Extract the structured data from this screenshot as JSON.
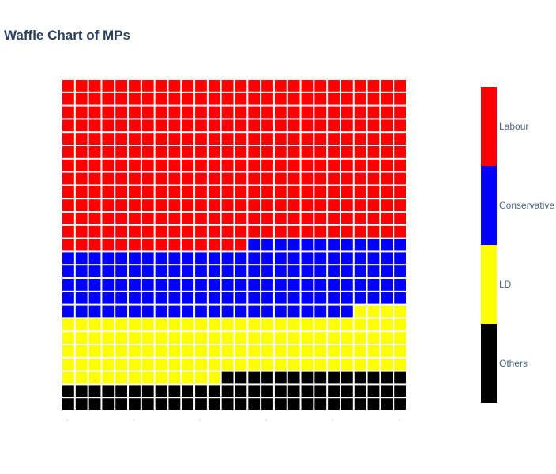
{
  "title": "Waffle Chart of MPs",
  "chart_data": {
    "type": "heatmap",
    "subtype": "waffle",
    "title": "Waffle Chart of MPs",
    "grid": {
      "rows": 25,
      "cols": 26,
      "fill_order": "row-major from top-left"
    },
    "categories": [
      "Labour",
      "Conservative",
      "LD",
      "Others"
    ],
    "colors": [
      "#ff0000",
      "#0000ff",
      "#ffff00",
      "#000000"
    ],
    "values": [
      326,
      138,
      120,
      66
    ],
    "colorbar": {
      "ticks": [
        "Labour",
        "Conservative",
        "LD",
        "Others"
      ]
    },
    "cell_gap_color": "#ffffff"
  }
}
